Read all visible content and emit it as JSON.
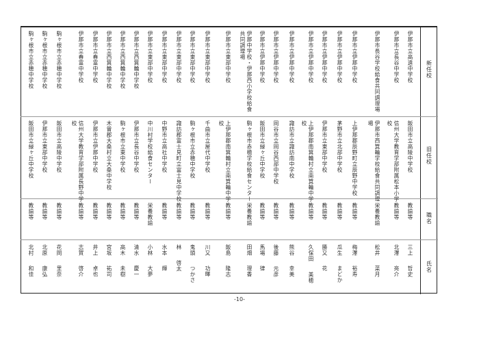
{
  "headers": {
    "new_school": "新任校",
    "old_school": "旧任校",
    "position": "職名",
    "name": "氏名"
  },
  "rows": [
    {
      "new_school": "伊那市立高遠中学校",
      "old_school": "飯田市立高陵中学校",
      "position": "教諭等",
      "family": "三上",
      "given": "哲史"
    },
    {
      "new_school": "伊那市立長谷中学校",
      "old_school": "信州大学教育学部附属松本小学校",
      "position": "教諭等",
      "family": "北澤",
      "given": "亮介"
    },
    {
      "new_school": "伊那市長谷学校給食共同調理場",
      "old_school": "伊那市西箕輪学校給食共同調理場",
      "position": "栄養教諭",
      "family": "松井",
      "given": "菜月"
    },
    {
      "new_school": "伊那市立伊那中学校",
      "old_school": "上伊那郡辰野町立辰野中学校",
      "position": "教諭等",
      "family": "梅澤",
      "given": "裕寿"
    },
    {
      "new_school": "伊那市立伊那中学校",
      "old_school": "茅野市立北部中学校",
      "position": "教諭等",
      "family": "瓜生",
      "given": "まどか"
    },
    {
      "new_school": "伊那市立伊那中学校",
      "old_school": "伊那市立東部中学校",
      "position": "教諭等",
      "family": "勝又",
      "given": "花"
    },
    {
      "new_school": "伊那市立伊那中学校",
      "old_school": "上伊那郡南箕輪村立南箕輪中学校",
      "position": "教諭等",
      "family": "久保田",
      "given": "美穂"
    },
    {
      "new_school": "伊那市立伊那中学校",
      "old_school": "諏訪市立諏訪南中学校",
      "position": "教諭等",
      "family": "熊谷",
      "given": "幸美"
    },
    {
      "new_school": "伊那市立伊那中学校",
      "old_school": "岡谷市立岡谷西部中学校",
      "position": "教諭等",
      "family": "後藤",
      "given": "元彦"
    },
    {
      "new_school": "伊那市立伊那中学校",
      "old_school": "飯田市立緑ヶ丘中学校",
      "position": "教諭等",
      "family": "馬場",
      "given": "律"
    },
    {
      "new_school": "伊那中学校・伊那西小学校給食共同調理場",
      "old_school": "駒ヶ根市赤穂学校給食センター",
      "position": "栄養教諭",
      "family": "田畑",
      "given": "理香"
    },
    {
      "new_school": "伊那市立東部中学校",
      "old_school": "上伊那郡南箕輪村立南箕輪中学校",
      "position": "教諭等",
      "family": "飯島",
      "given": "隆志"
    },
    {
      "new_school": "伊那市立東部中学校",
      "old_school": "千曲市立屋代中学校",
      "position": "教諭等",
      "family": "川又",
      "given": "功暉"
    },
    {
      "new_school": "伊那市立東部中学校",
      "old_school": "駒ヶ根市立赤穂中学校",
      "position": "教諭等",
      "family": "鬼頭",
      "given": "つかさ"
    },
    {
      "new_school": "伊那市立東部中学校",
      "old_school": "諏訪郡富士見町立富士見中学校",
      "position": "教諭等",
      "family": "林",
      "given": "啓太"
    },
    {
      "new_school": "伊那市立東部中学校",
      "old_school": "中野市立高社中学校",
      "position": "教諭等",
      "family": "水本",
      "given": "輝"
    },
    {
      "new_school": "伊那市立東部中学校",
      "old_school": "中川村学校給食センター",
      "position": "栄養教諭",
      "family": "小林",
      "given": "大夢"
    },
    {
      "new_school": "伊那市立西箕輪中学校",
      "old_school": "伊那市立長谷中学校",
      "position": "教諭等",
      "family": "清水",
      "given": "慶一"
    },
    {
      "new_school": "伊那市立西箕輪中学校",
      "old_school": "駒ヶ根市立東中学校",
      "position": "教諭等",
      "family": "高木",
      "given": "未樹"
    },
    {
      "new_school": "伊那市立西箕輪中学校",
      "old_school": "木曽郡大桑村立大桑中学校",
      "position": "教諭等",
      "family": "宮坂",
      "given": "祐司"
    },
    {
      "new_school": "伊那市立春富中学校",
      "old_school": "伊那市立伊那中学校",
      "position": "教諭等",
      "family": "井上",
      "given": "卓也"
    },
    {
      "new_school": "伊那市立春富中学校",
      "old_school": "信州大学教育学部附属長野中学校",
      "position": "教諭等",
      "family": "志賀",
      "given": "啓介"
    },
    {
      "new_school": "駒ヶ根市立赤穂中学校",
      "old_school": "飯田市立高陵中学校",
      "position": "教諭等",
      "family": "花岡",
      "given": "里奈"
    },
    {
      "new_school": "駒ヶ根市立赤穂中学校",
      "old_school": "伊那市立東部中学校",
      "position": "教諭等",
      "family": "北原",
      "given": "康弘"
    },
    {
      "new_school": "駒ヶ根市立赤穂中学校",
      "old_school": "飯田市立緑ヶ丘中学校",
      "position": "教諭等",
      "family": "北村",
      "given": "和佳"
    }
  ],
  "page_number": "-10-"
}
